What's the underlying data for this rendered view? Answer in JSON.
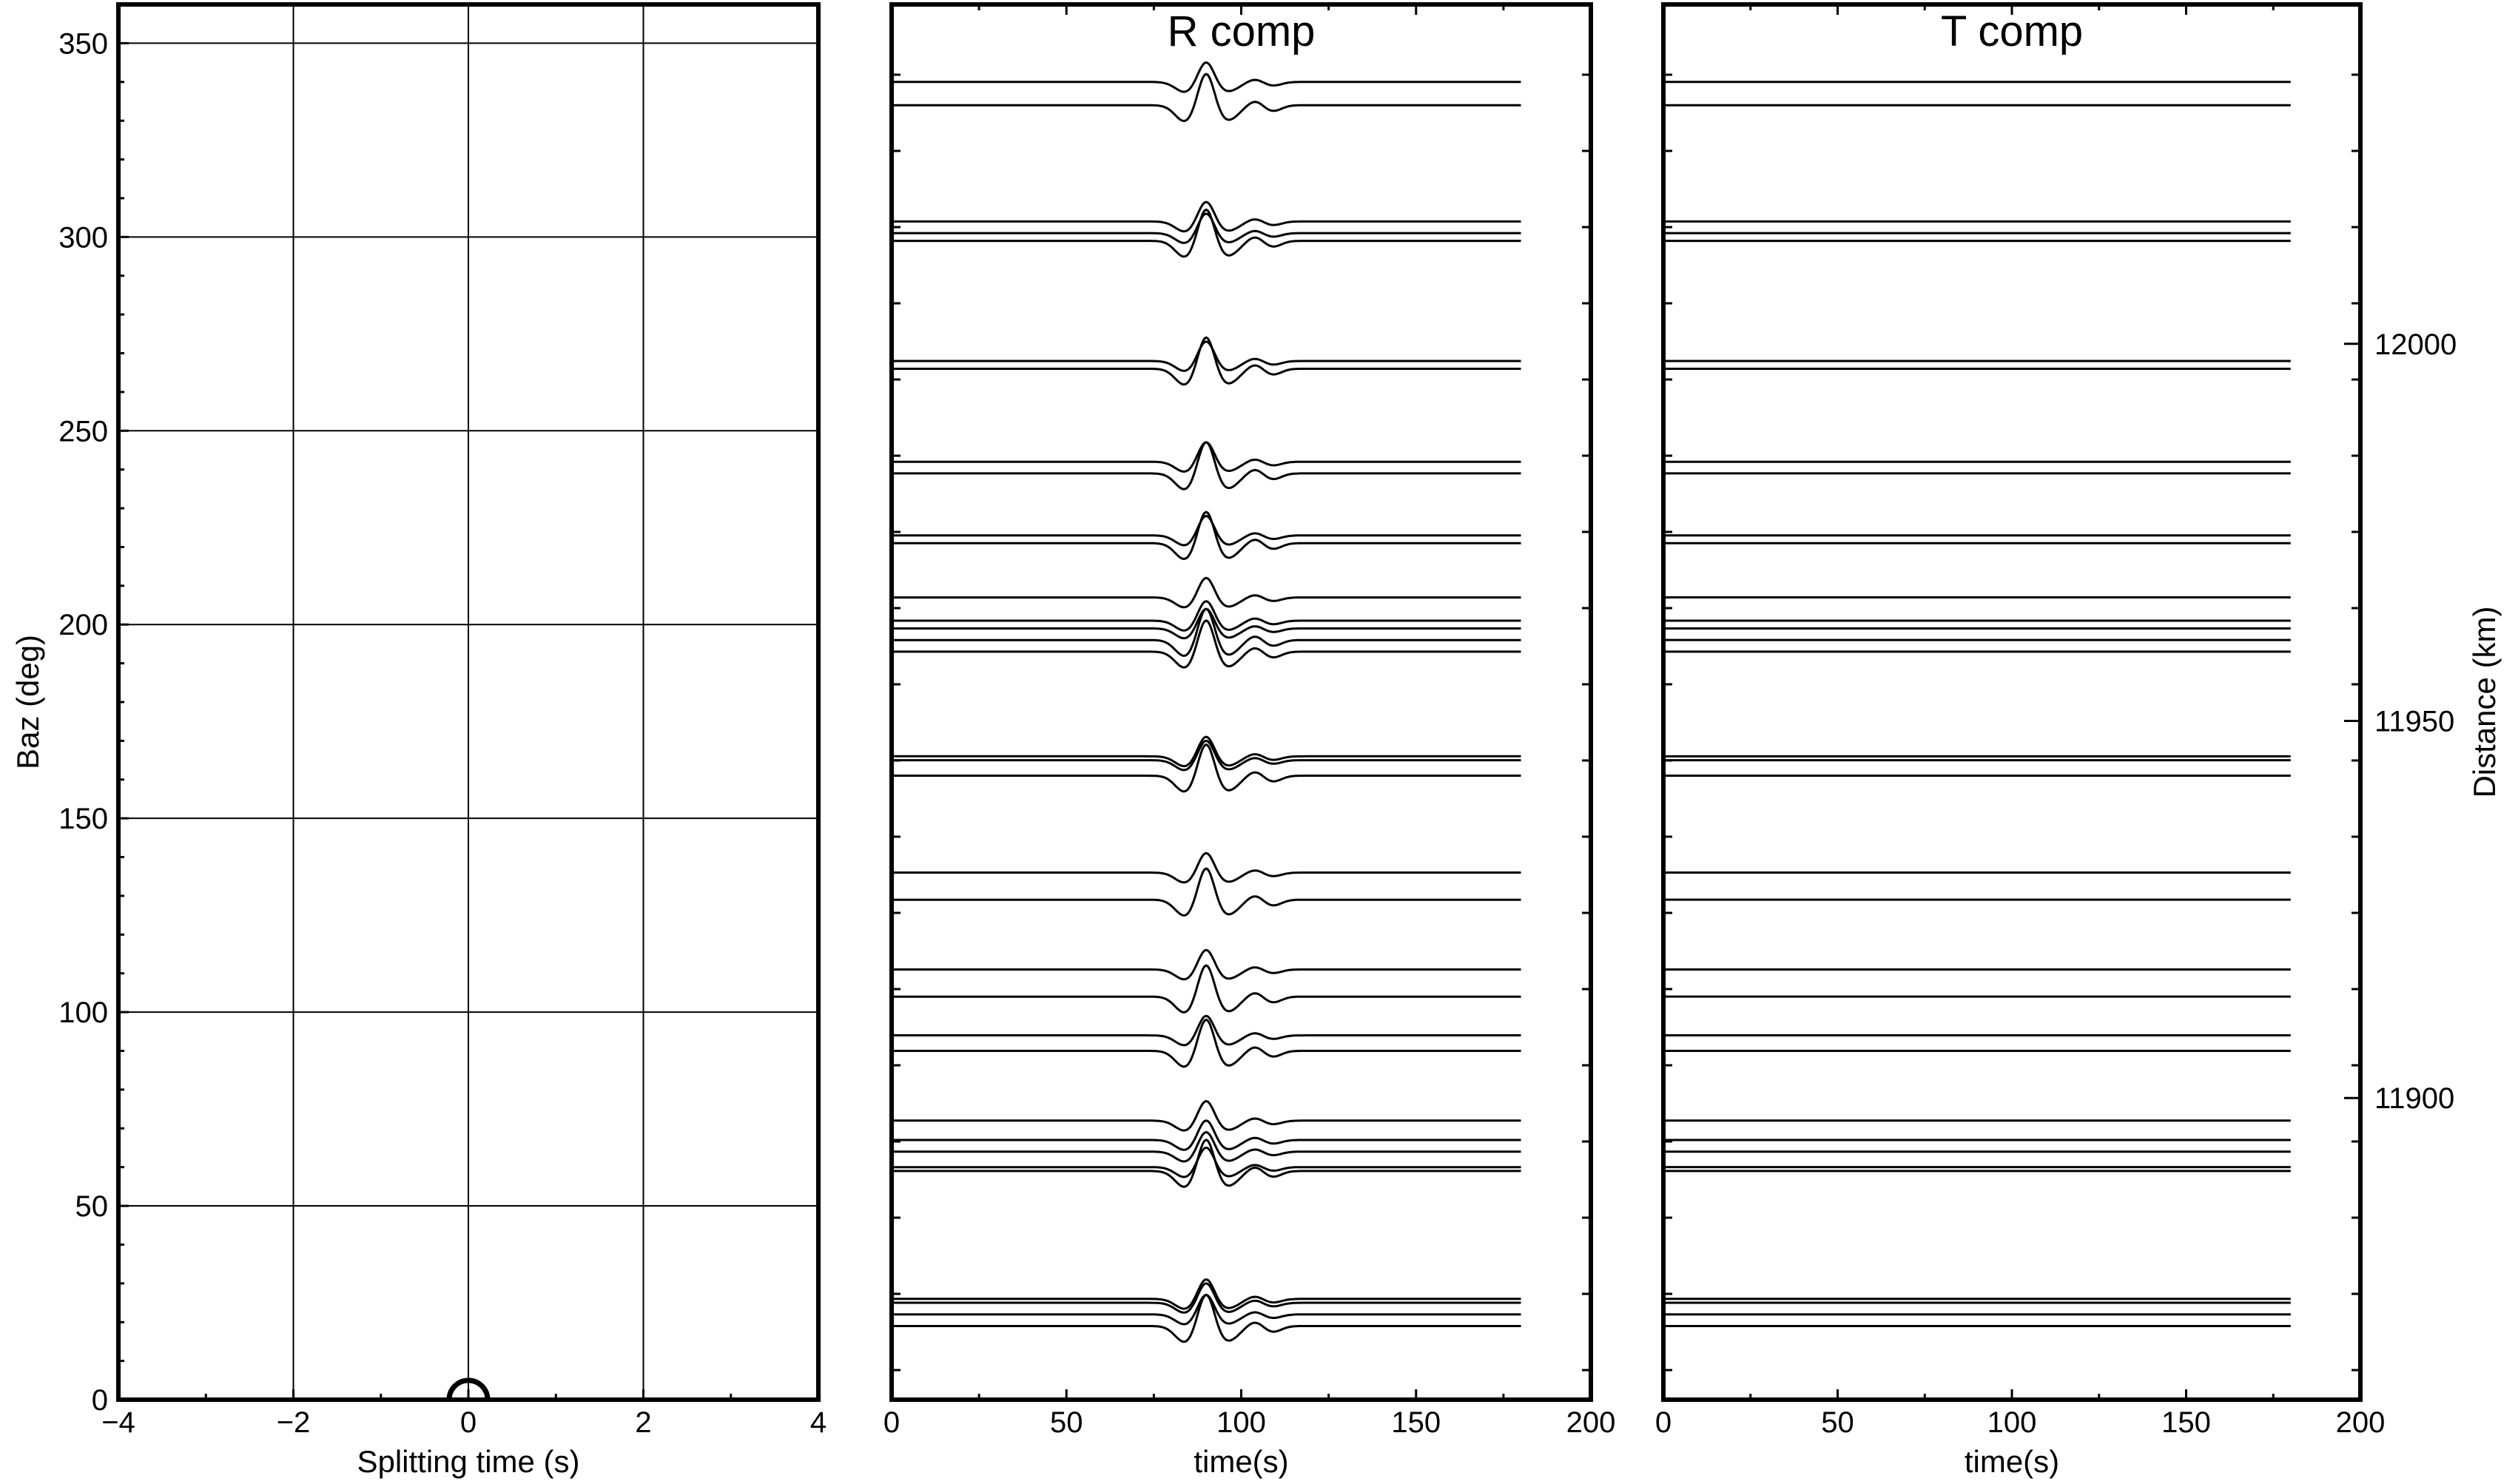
{
  "chart_data": [
    {
      "id": "splitting",
      "type": "scatter",
      "xlabel": "Splitting time (s)",
      "ylabel": "Baz (deg)",
      "xlim": [
        -4,
        4
      ],
      "ylim": [
        0,
        360
      ],
      "xticks": [
        -4,
        -2,
        0,
        2,
        4
      ],
      "xtick_labels": [
        "−4",
        "−2",
        "0",
        "2",
        "4"
      ],
      "yticks": [
        0,
        50,
        100,
        150,
        200,
        250,
        300,
        350
      ],
      "ytick_labels": [
        "0",
        "50",
        "100",
        "150",
        "200",
        "250",
        "300",
        "350"
      ],
      "grid": true,
      "marker": "open-circle",
      "points": [
        {
          "x": 0,
          "y": 0
        }
      ]
    },
    {
      "id": "r_comp",
      "type": "line",
      "title": "R comp",
      "xlabel": "time(s)",
      "xlim": [
        0,
        200
      ],
      "xticks": [
        0,
        50,
        100,
        150,
        200
      ],
      "xtick_labels": [
        "0",
        "50",
        "100",
        "150",
        "200"
      ],
      "trace_end_time": 180,
      "waveform_center_time": 90,
      "trace_baz": [
        340,
        334,
        304,
        301,
        299,
        268,
        266,
        242,
        239,
        223,
        221,
        207,
        201,
        199,
        196,
        193,
        166,
        165,
        161,
        136,
        129,
        111,
        104,
        94,
        90,
        72,
        67,
        64,
        60,
        59,
        26,
        25,
        22,
        19
      ],
      "trace_amplitude": [
        1,
        1.6,
        1,
        1,
        1.6,
        1,
        1.6,
        1,
        1.6,
        1,
        1.6,
        1,
        1,
        1,
        1.6,
        1.6,
        1,
        1,
        1.6,
        1,
        1.6,
        1,
        1.6,
        1,
        1.6,
        1,
        1,
        1,
        1,
        1.6,
        1,
        1,
        1,
        1.6
      ]
    },
    {
      "id": "t_comp",
      "type": "line",
      "title": "T comp",
      "xlabel": "time(s)",
      "ylabel": "Distance (km)",
      "xlim": [
        0,
        200
      ],
      "xticks": [
        0,
        50,
        100,
        150,
        200
      ],
      "xtick_labels": [
        "0",
        "50",
        "100",
        "150",
        "200"
      ],
      "ylim": [
        11860,
        12045
      ],
      "yticks": [
        11900,
        11950,
        12000
      ],
      "ytick_labels": [
        "11900",
        "11950",
        "12000"
      ],
      "trace_end_time": 180,
      "trace_baz": [
        340,
        334,
        304,
        301,
        299,
        268,
        266,
        242,
        239,
        223,
        221,
        207,
        201,
        199,
        196,
        193,
        166,
        165,
        161,
        136,
        129,
        111,
        104,
        94,
        90,
        72,
        67,
        64,
        60,
        59,
        26,
        25,
        22,
        19
      ]
    }
  ]
}
